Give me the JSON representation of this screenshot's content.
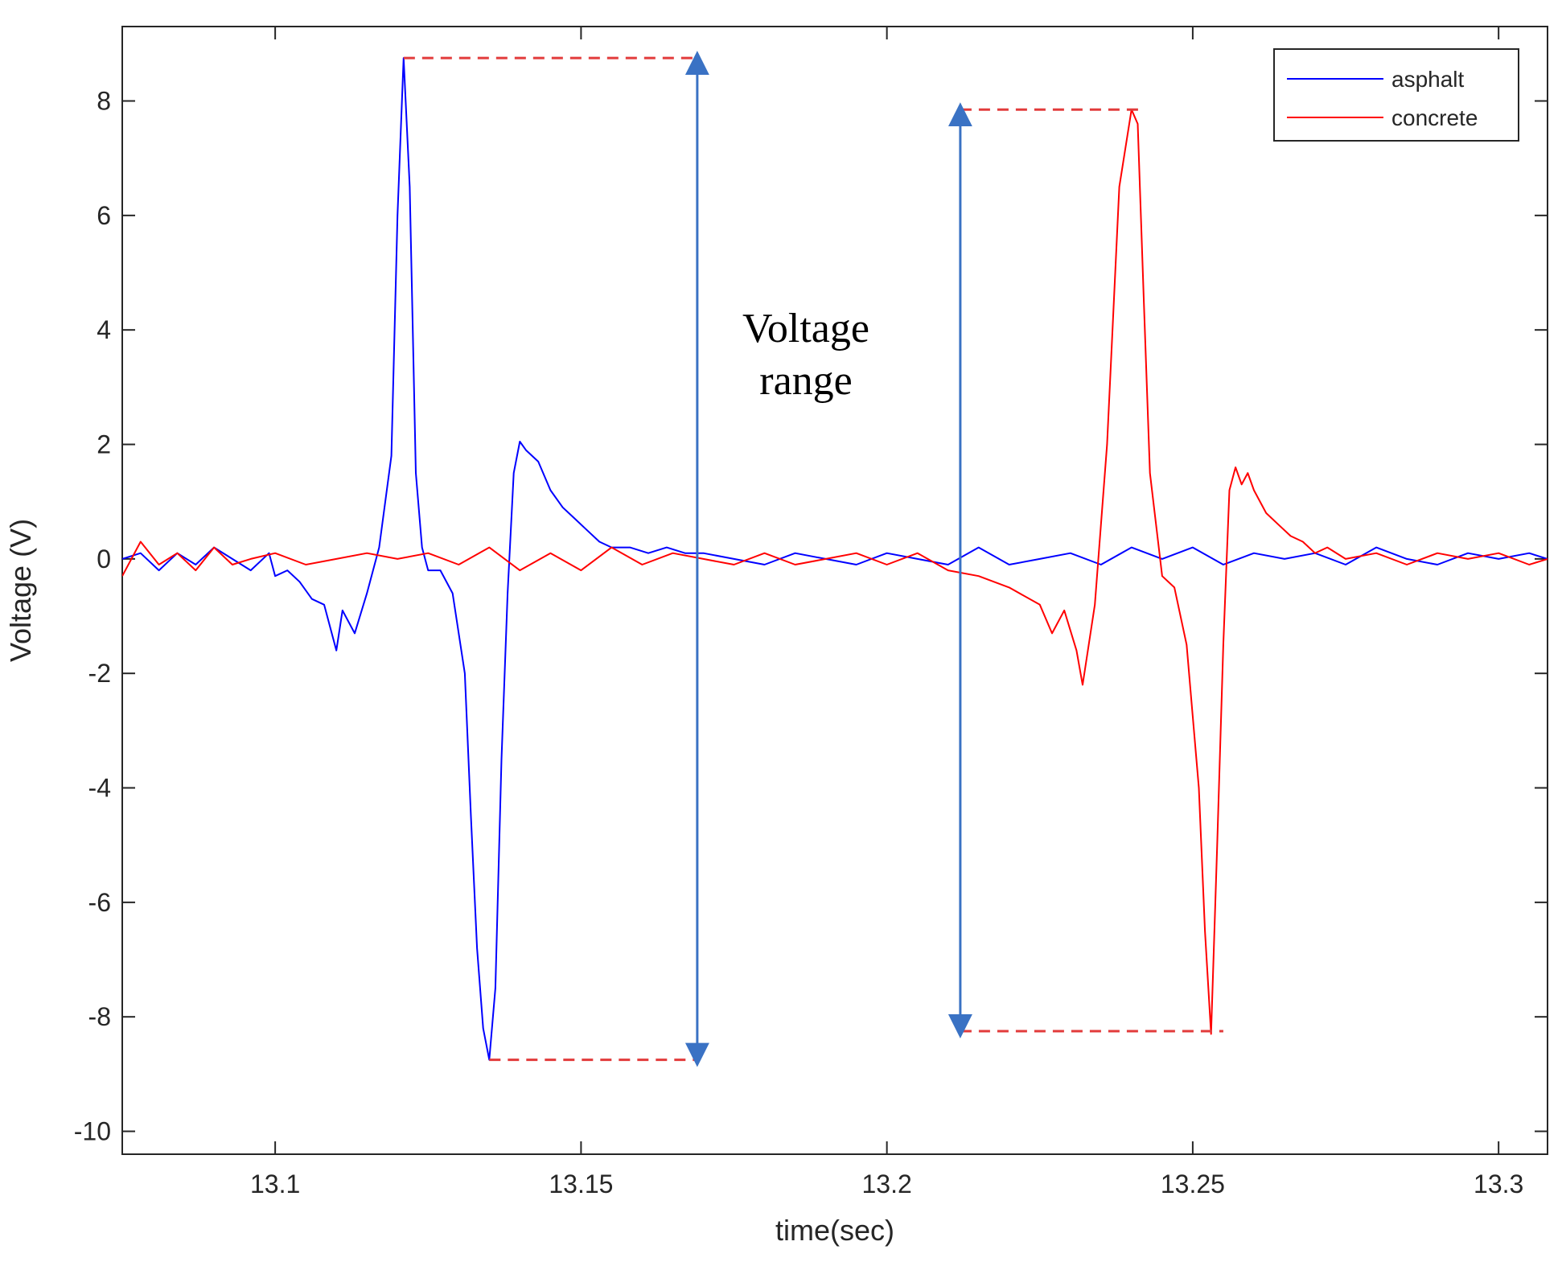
{
  "chart_data": {
    "type": "line",
    "title": "",
    "xlabel": "time(sec)",
    "ylabel": "Voltage (V)",
    "xlim": [
      13.075,
      13.308
    ],
    "ylim": [
      -10.4,
      9.3
    ],
    "xticks": [
      13.1,
      13.15,
      13.2,
      13.25,
      13.3
    ],
    "xtick_labels": [
      "13.1",
      "13.15",
      "13.2",
      "13.25",
      "13.3"
    ],
    "yticks": [
      8,
      6,
      4,
      2,
      0,
      -2,
      -4,
      -6,
      -8,
      -10
    ],
    "ytick_labels": [
      "8",
      "6",
      "4",
      "2",
      "0",
      "-2",
      "-4",
      "-6",
      "-8",
      "-10"
    ],
    "grid": false,
    "legend_position": "top-right",
    "series": [
      {
        "name": "asphalt",
        "color": "#0000ff",
        "x": [
          13.075,
          13.078,
          13.081,
          13.084,
          13.087,
          13.09,
          13.093,
          13.096,
          13.099,
          13.1,
          13.102,
          13.104,
          13.106,
          13.108,
          13.11,
          13.111,
          13.113,
          13.115,
          13.117,
          13.119,
          13.12,
          13.121,
          13.122,
          13.123,
          13.124,
          13.125,
          13.127,
          13.129,
          13.131,
          13.132,
          13.133,
          13.134,
          13.135,
          13.136,
          13.137,
          13.138,
          13.139,
          13.14,
          13.141,
          13.143,
          13.145,
          13.147,
          13.149,
          13.151,
          13.153,
          13.155,
          13.158,
          13.161,
          13.164,
          13.167,
          13.17,
          13.175,
          13.18,
          13.185,
          13.19,
          13.195,
          13.2,
          13.205,
          13.21,
          13.215,
          13.22,
          13.225,
          13.23,
          13.235,
          13.24,
          13.245,
          13.25,
          13.255,
          13.26,
          13.265,
          13.27,
          13.275,
          13.28,
          13.285,
          13.29,
          13.295,
          13.3,
          13.305,
          13.308
        ],
        "y": [
          0.0,
          0.1,
          -0.2,
          0.1,
          -0.1,
          0.2,
          0.0,
          -0.2,
          0.1,
          -0.3,
          -0.2,
          -0.4,
          -0.7,
          -0.8,
          -1.6,
          -0.9,
          -1.3,
          -0.6,
          0.2,
          1.8,
          6.0,
          8.75,
          6.5,
          1.5,
          0.2,
          -0.2,
          -0.2,
          -0.6,
          -2.0,
          -4.5,
          -6.8,
          -8.2,
          -8.75,
          -7.5,
          -3.5,
          -0.6,
          1.5,
          2.05,
          1.9,
          1.7,
          1.2,
          0.9,
          0.7,
          0.5,
          0.3,
          0.2,
          0.2,
          0.1,
          0.2,
          0.1,
          0.1,
          0.0,
          -0.1,
          0.1,
          0.0,
          -0.1,
          0.1,
          0.0,
          -0.1,
          0.2,
          -0.1,
          0.0,
          0.1,
          -0.1,
          0.2,
          0.0,
          0.2,
          -0.1,
          0.1,
          0.0,
          0.1,
          -0.1,
          0.2,
          0.0,
          -0.1,
          0.1,
          0.0,
          0.1,
          0.0
        ]
      },
      {
        "name": "concrete",
        "color": "#ff0000",
        "x": [
          13.075,
          13.078,
          13.081,
          13.084,
          13.087,
          13.09,
          13.093,
          13.096,
          13.1,
          13.105,
          13.11,
          13.115,
          13.12,
          13.125,
          13.13,
          13.135,
          13.14,
          13.145,
          13.15,
          13.155,
          13.16,
          13.165,
          13.17,
          13.175,
          13.18,
          13.185,
          13.19,
          13.195,
          13.2,
          13.205,
          13.21,
          13.215,
          13.22,
          13.225,
          13.227,
          13.229,
          13.231,
          13.232,
          13.233,
          13.234,
          13.236,
          13.238,
          13.24,
          13.241,
          13.242,
          13.243,
          13.245,
          13.247,
          13.249,
          13.251,
          13.252,
          13.253,
          13.254,
          13.255,
          13.256,
          13.257,
          13.258,
          13.259,
          13.26,
          13.262,
          13.264,
          13.266,
          13.268,
          13.27,
          13.272,
          13.275,
          13.28,
          13.285,
          13.29,
          13.295,
          13.3,
          13.305,
          13.308
        ],
        "y": [
          -0.3,
          0.3,
          -0.1,
          0.1,
          -0.2,
          0.2,
          -0.1,
          0.0,
          0.1,
          -0.1,
          0.0,
          0.1,
          0.0,
          0.1,
          -0.1,
          0.2,
          -0.2,
          0.1,
          -0.2,
          0.2,
          -0.1,
          0.1,
          0.0,
          -0.1,
          0.1,
          -0.1,
          0.0,
          0.1,
          -0.1,
          0.1,
          -0.2,
          -0.3,
          -0.5,
          -0.8,
          -1.3,
          -0.9,
          -1.6,
          -2.2,
          -1.5,
          -0.8,
          2.0,
          6.5,
          7.85,
          7.6,
          4.5,
          1.5,
          -0.3,
          -0.5,
          -1.5,
          -4.0,
          -6.5,
          -8.3,
          -5.0,
          -1.5,
          1.2,
          1.6,
          1.3,
          1.5,
          1.2,
          0.8,
          0.6,
          0.4,
          0.3,
          0.1,
          0.2,
          0.0,
          0.1,
          -0.1,
          0.1,
          0.0,
          0.1,
          -0.1,
          0.0
        ]
      }
    ],
    "annotations": {
      "text_line1": "Voltage",
      "text_line2": "range",
      "asphalt_range": {
        "x_left": 13.121,
        "x_right": 13.169,
        "y_top": 8.75,
        "x_bottom_left": 13.135,
        "y_bottom": -8.75
      },
      "concrete_range": {
        "x_left": 13.212,
        "x_right": 13.242,
        "y_top": 7.85,
        "x_bottom_right": 13.255,
        "y_bottom": -8.25
      },
      "dash_color": "#e23b3b",
      "arrow_color": "#3a72c4"
    }
  }
}
